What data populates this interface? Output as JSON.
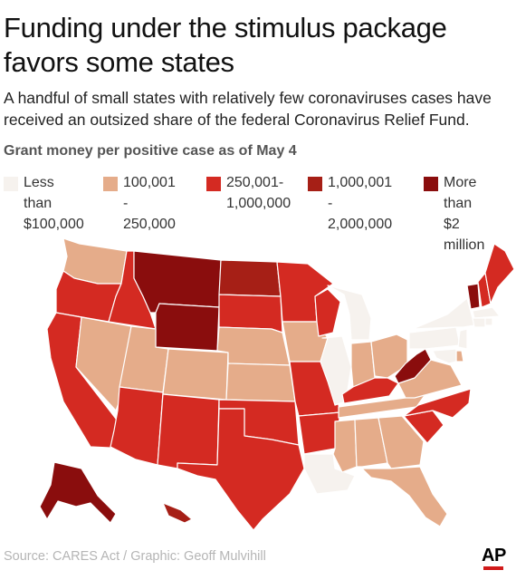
{
  "header": {
    "title": "Funding under the stimulus package favors some states",
    "subtitle": "A handful of small states with relatively few coronaviruses cases have received an outsized share of the federal Coronavirus Relief Fund."
  },
  "legend": {
    "title": "Grant money per positive case as of May 4",
    "items": [
      {
        "label": "Less than\n$100,000",
        "color": "#f6f2ee"
      },
      {
        "label": "100,001 -\n250,000",
        "color": "#e5ac8a"
      },
      {
        "label": "250,001-\n1,000,000",
        "color": "#d42a22"
      },
      {
        "label": "1,000,001 -\n2,000,000",
        "color": "#a61f16"
      },
      {
        "label": "More than\n$2 million",
        "color": "#8a0d0d"
      }
    ]
  },
  "map": {
    "states": [
      {
        "id": "WA",
        "tier": 1
      },
      {
        "id": "OR",
        "tier": 2
      },
      {
        "id": "CA",
        "tier": 2
      },
      {
        "id": "ID",
        "tier": 2
      },
      {
        "id": "NV",
        "tier": 1
      },
      {
        "id": "MT",
        "tier": 4
      },
      {
        "id": "WY",
        "tier": 4
      },
      {
        "id": "UT",
        "tier": 1
      },
      {
        "id": "AZ",
        "tier": 2
      },
      {
        "id": "CO",
        "tier": 1
      },
      {
        "id": "NM",
        "tier": 2
      },
      {
        "id": "ND",
        "tier": 3
      },
      {
        "id": "SD",
        "tier": 2
      },
      {
        "id": "NE",
        "tier": 1
      },
      {
        "id": "KS",
        "tier": 1
      },
      {
        "id": "OK",
        "tier": 2
      },
      {
        "id": "TX",
        "tier": 2
      },
      {
        "id": "MN",
        "tier": 2
      },
      {
        "id": "IA",
        "tier": 1
      },
      {
        "id": "MO",
        "tier": 2
      },
      {
        "id": "AR",
        "tier": 2
      },
      {
        "id": "LA",
        "tier": 0
      },
      {
        "id": "WI",
        "tier": 2
      },
      {
        "id": "IL",
        "tier": 0
      },
      {
        "id": "MI",
        "tier": 0
      },
      {
        "id": "IN",
        "tier": 1
      },
      {
        "id": "OH",
        "tier": 1
      },
      {
        "id": "KY",
        "tier": 2
      },
      {
        "id": "TN",
        "tier": 1
      },
      {
        "id": "MS",
        "tier": 1
      },
      {
        "id": "AL",
        "tier": 1
      },
      {
        "id": "GA",
        "tier": 1
      },
      {
        "id": "FL",
        "tier": 1
      },
      {
        "id": "SC",
        "tier": 2
      },
      {
        "id": "NC",
        "tier": 2
      },
      {
        "id": "VA",
        "tier": 1
      },
      {
        "id": "WV",
        "tier": 4
      },
      {
        "id": "PA",
        "tier": 0
      },
      {
        "id": "NY",
        "tier": 0
      },
      {
        "id": "VT",
        "tier": 4
      },
      {
        "id": "NH",
        "tier": 2
      },
      {
        "id": "ME",
        "tier": 2
      },
      {
        "id": "MA",
        "tier": 0
      },
      {
        "id": "CT",
        "tier": 0
      },
      {
        "id": "RI",
        "tier": 0
      },
      {
        "id": "NJ",
        "tier": 0
      },
      {
        "id": "DE",
        "tier": 1
      },
      {
        "id": "MD",
        "tier": 0
      },
      {
        "id": "AK",
        "tier": 4
      },
      {
        "id": "HI",
        "tier": 3
      }
    ]
  },
  "footer": {
    "source": "Source: CARES Act  / Graphic: Geoff Mulvihill",
    "logo": "AP"
  }
}
